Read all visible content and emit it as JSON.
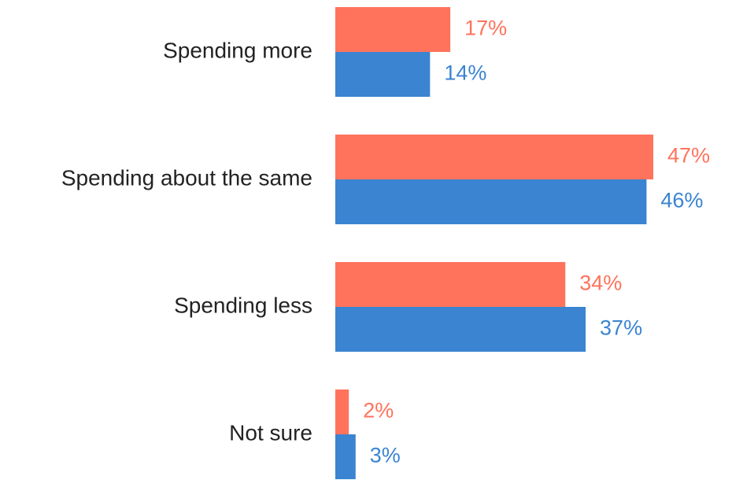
{
  "chart_data": {
    "type": "bar",
    "orientation": "horizontal",
    "categories": [
      "Spending more",
      "Spending about the same",
      "Spending less",
      "Not sure"
    ],
    "series": [
      {
        "values": [
          17,
          47,
          34,
          2
        ],
        "labels": [
          "17%",
          "47%",
          "34%",
          "2%"
        ],
        "color": "#FF735C"
      },
      {
        "values": [
          14,
          46,
          37,
          3
        ],
        "labels": [
          "14%",
          "46%",
          "37%",
          "3%"
        ],
        "color": "#3A84D1"
      }
    ],
    "value_unit": "%",
    "xlim": [
      0,
      47
    ],
    "title": "",
    "xlabel": "",
    "ylabel": "",
    "grid": false,
    "legend": "none"
  }
}
